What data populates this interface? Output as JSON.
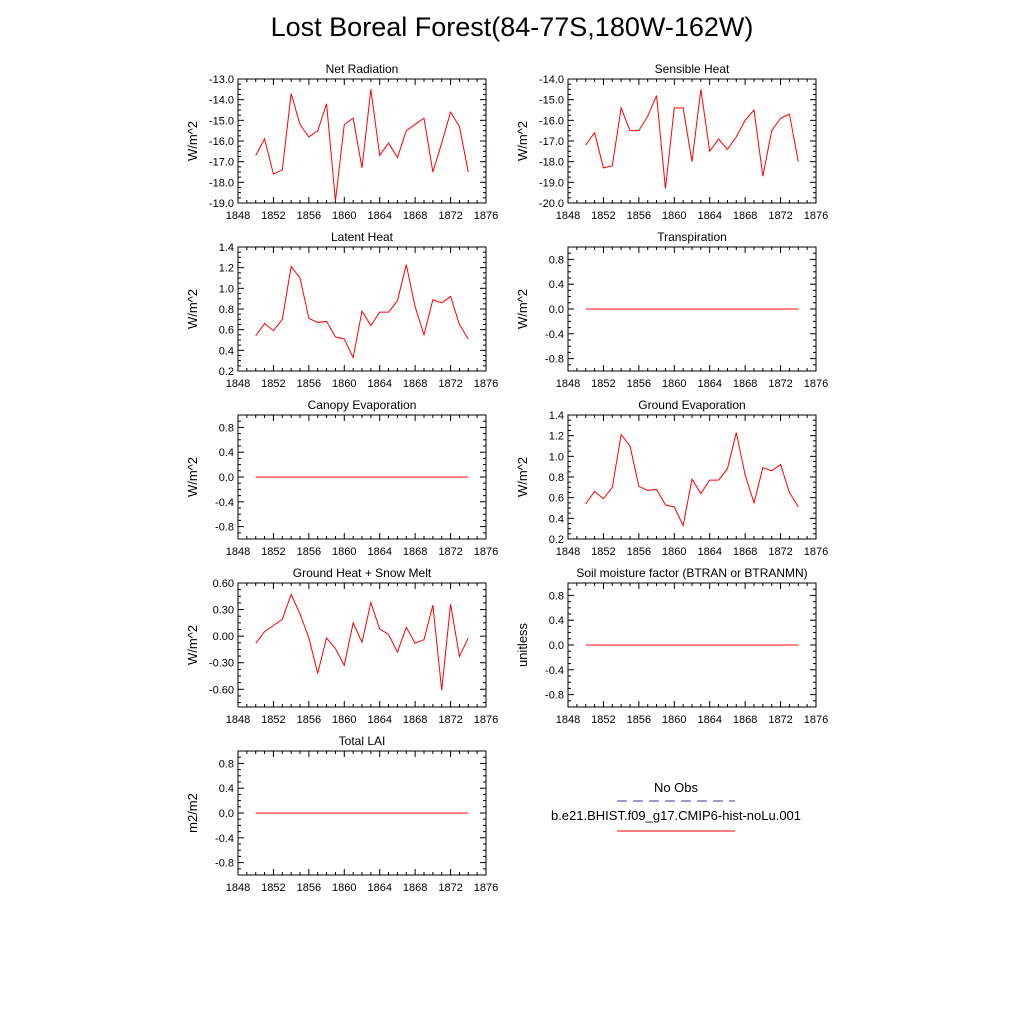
{
  "title": "Lost Boreal Forest(84-77S,180W-162W)",
  "legend": {
    "obs_label": "No Obs",
    "model_label": "b.e21.BHIST.f09_g17.CMIP6-hist-noLu.001",
    "obs_color": "#3c3c96",
    "model_color": "#ff0000"
  },
  "chart_data": [
    {
      "type": "line",
      "title": "Net Radiation",
      "ylabel": "W/m^2",
      "xlim": [
        1848,
        1876
      ],
      "ylim": [
        -19.0,
        -13.0
      ],
      "xticks": [
        "1848",
        "1852",
        "1856",
        "1860",
        "1864",
        "1868",
        "1872",
        "1876"
      ],
      "yticks": [
        "-13.0",
        "-14.0",
        "-15.0",
        "-16.0",
        "-17.0",
        "-18.0",
        "-19.0"
      ],
      "series": [
        {
          "x": [
            1850,
            1851,
            1852,
            1853,
            1854,
            1855,
            1856,
            1857,
            1858,
            1859,
            1860,
            1861,
            1862,
            1863,
            1864,
            1865,
            1866,
            1867,
            1868,
            1869,
            1870,
            1871,
            1872,
            1873,
            1874
          ],
          "y": [
            -16.7,
            -15.9,
            -17.6,
            -17.4,
            -13.7,
            -15.2,
            -15.8,
            -15.5,
            -14.2,
            -18.9,
            -15.2,
            -14.9,
            -17.3,
            -13.5,
            -16.7,
            -16.1,
            -16.8,
            -15.5,
            -15.2,
            -14.9,
            -17.5,
            -16.1,
            -14.6,
            -15.3,
            -17.5
          ],
          "color": "#ff0000"
        }
      ]
    },
    {
      "type": "line",
      "title": "Sensible Heat",
      "ylabel": "W/m^2",
      "xlim": [
        1848,
        1876
      ],
      "ylim": [
        -20.0,
        -14.0
      ],
      "xticks": [
        "1848",
        "1852",
        "1856",
        "1860",
        "1864",
        "1868",
        "1872",
        "1876"
      ],
      "yticks": [
        "-14.0",
        "-15.0",
        "-16.0",
        "-17.0",
        "-18.0",
        "-19.0",
        "-20.0"
      ],
      "series": [
        {
          "x": [
            1850,
            1851,
            1852,
            1853,
            1854,
            1855,
            1856,
            1857,
            1858,
            1859,
            1860,
            1861,
            1862,
            1863,
            1864,
            1865,
            1866,
            1867,
            1868,
            1869,
            1870,
            1871,
            1872,
            1873,
            1874
          ],
          "y": [
            -17.2,
            -16.6,
            -18.3,
            -18.2,
            -15.4,
            -16.5,
            -16.5,
            -15.8,
            -14.8,
            -19.3,
            -15.4,
            -15.4,
            -18.0,
            -14.5,
            -17.5,
            -16.9,
            -17.4,
            -16.8,
            -16.0,
            -15.5,
            -18.7,
            -16.5,
            -15.9,
            -15.7,
            -18.0
          ],
          "color": "#ff0000"
        }
      ]
    },
    {
      "type": "line",
      "title": "Latent Heat",
      "ylabel": "W/m^2",
      "xlim": [
        1848,
        1876
      ],
      "ylim": [
        0.2,
        1.4
      ],
      "xticks": [
        "1848",
        "1852",
        "1856",
        "1860",
        "1864",
        "1868",
        "1872",
        "1876"
      ],
      "yticks": [
        "1.4",
        "1.2",
        "1.0",
        "0.8",
        "0.6",
        "0.4",
        "0.2"
      ],
      "series": [
        {
          "x": [
            1850,
            1851,
            1852,
            1853,
            1854,
            1855,
            1856,
            1857,
            1858,
            1859,
            1860,
            1861,
            1862,
            1863,
            1864,
            1865,
            1866,
            1867,
            1868,
            1869,
            1870,
            1871,
            1872,
            1873,
            1874
          ],
          "y": [
            0.54,
            0.66,
            0.59,
            0.7,
            1.21,
            1.1,
            0.71,
            0.67,
            0.68,
            0.53,
            0.51,
            0.33,
            0.78,
            0.64,
            0.77,
            0.77,
            0.88,
            1.23,
            0.82,
            0.55,
            0.89,
            0.86,
            0.92,
            0.65,
            0.51
          ],
          "color": "#ff0000"
        }
      ]
    },
    {
      "type": "line",
      "title": "Transpiration",
      "ylabel": "W/m^2",
      "xlim": [
        1848,
        1876
      ],
      "ylim": [
        -1.0,
        1.0
      ],
      "xticks": [
        "1848",
        "1852",
        "1856",
        "1860",
        "1864",
        "1868",
        "1872",
        "1876"
      ],
      "yticks": [
        "0.8",
        "0.4",
        "0.0",
        "-0.4",
        "-0.8"
      ],
      "series": [
        {
          "x": [
            1850,
            1851,
            1852,
            1853,
            1854,
            1855,
            1856,
            1857,
            1858,
            1859,
            1860,
            1861,
            1862,
            1863,
            1864,
            1865,
            1866,
            1867,
            1868,
            1869,
            1870,
            1871,
            1872,
            1873,
            1874
          ],
          "y": [
            0,
            0,
            0,
            0,
            0,
            0,
            0,
            0,
            0,
            0,
            0,
            0,
            0,
            0,
            0,
            0,
            0,
            0,
            0,
            0,
            0,
            0,
            0,
            0,
            0
          ],
          "color": "#ff0000"
        }
      ]
    },
    {
      "type": "line",
      "title": "Canopy Evaporation",
      "ylabel": "W/m^2",
      "xlim": [
        1848,
        1876
      ],
      "ylim": [
        -1.0,
        1.0
      ],
      "xticks": [
        "1848",
        "1852",
        "1856",
        "1860",
        "1864",
        "1868",
        "1872",
        "1876"
      ],
      "yticks": [
        "0.8",
        "0.4",
        "0.0",
        "-0.4",
        "-0.8"
      ],
      "series": [
        {
          "x": [
            1850,
            1851,
            1852,
            1853,
            1854,
            1855,
            1856,
            1857,
            1858,
            1859,
            1860,
            1861,
            1862,
            1863,
            1864,
            1865,
            1866,
            1867,
            1868,
            1869,
            1870,
            1871,
            1872,
            1873,
            1874
          ],
          "y": [
            0,
            0,
            0,
            0,
            0,
            0,
            0,
            0,
            0,
            0,
            0,
            0,
            0,
            0,
            0,
            0,
            0,
            0,
            0,
            0,
            0,
            0,
            0,
            0,
            0
          ],
          "color": "#ff0000"
        }
      ]
    },
    {
      "type": "line",
      "title": "Ground Evaporation",
      "ylabel": "W/m^2",
      "xlim": [
        1848,
        1876
      ],
      "ylim": [
        0.2,
        1.4
      ],
      "xticks": [
        "1848",
        "1852",
        "1856",
        "1860",
        "1864",
        "1868",
        "1872",
        "1876"
      ],
      "yticks": [
        "1.4",
        "1.2",
        "1.0",
        "0.8",
        "0.6",
        "0.4",
        "0.2"
      ],
      "series": [
        {
          "x": [
            1850,
            1851,
            1852,
            1853,
            1854,
            1855,
            1856,
            1857,
            1858,
            1859,
            1860,
            1861,
            1862,
            1863,
            1864,
            1865,
            1866,
            1867,
            1868,
            1869,
            1870,
            1871,
            1872,
            1873,
            1874
          ],
          "y": [
            0.54,
            0.66,
            0.59,
            0.7,
            1.21,
            1.1,
            0.71,
            0.67,
            0.68,
            0.53,
            0.51,
            0.33,
            0.78,
            0.64,
            0.77,
            0.77,
            0.88,
            1.23,
            0.82,
            0.55,
            0.89,
            0.86,
            0.92,
            0.65,
            0.51
          ],
          "color": "#ff0000"
        }
      ]
    },
    {
      "type": "line",
      "title": "Ground Heat + Snow Melt",
      "ylabel": "W/m^2",
      "xlim": [
        1848,
        1876
      ],
      "ylim": [
        -0.8,
        0.6
      ],
      "xticks": [
        "1848",
        "1852",
        "1856",
        "1860",
        "1864",
        "1868",
        "1872",
        "1876"
      ],
      "yticks": [
        "0.60",
        "0.30",
        "0.00",
        "-0.30",
        "-0.60"
      ],
      "series": [
        {
          "x": [
            1850,
            1851,
            1852,
            1853,
            1854,
            1855,
            1856,
            1857,
            1858,
            1859,
            1860,
            1861,
            1862,
            1863,
            1864,
            1865,
            1866,
            1867,
            1868,
            1869,
            1870,
            1871,
            1872,
            1873,
            1874
          ],
          "y": [
            -0.08,
            0.05,
            0.12,
            0.19,
            0.47,
            0.25,
            -0.02,
            -0.42,
            -0.02,
            -0.14,
            -0.33,
            0.15,
            -0.07,
            0.38,
            0.08,
            0.02,
            -0.18,
            0.1,
            -0.08,
            -0.04,
            0.35,
            -0.61,
            0.36,
            -0.23,
            -0.02
          ],
          "color": "#ff0000"
        }
      ]
    },
    {
      "type": "line",
      "title": "Soil moisture factor (BTRAN or BTRANMN)",
      "ylabel": "unitless",
      "xlim": [
        1848,
        1876
      ],
      "ylim": [
        -1.0,
        1.0
      ],
      "xticks": [
        "1848",
        "1852",
        "1856",
        "1860",
        "1864",
        "1868",
        "1872",
        "1876"
      ],
      "yticks": [
        "0.8",
        "0.4",
        "0.0",
        "-0.4",
        "-0.8"
      ],
      "series": [
        {
          "x": [
            1850,
            1851,
            1852,
            1853,
            1854,
            1855,
            1856,
            1857,
            1858,
            1859,
            1860,
            1861,
            1862,
            1863,
            1864,
            1865,
            1866,
            1867,
            1868,
            1869,
            1870,
            1871,
            1872,
            1873,
            1874
          ],
          "y": [
            0,
            0,
            0,
            0,
            0,
            0,
            0,
            0,
            0,
            0,
            0,
            0,
            0,
            0,
            0,
            0,
            0,
            0,
            0,
            0,
            0,
            0,
            0,
            0,
            0
          ],
          "color": "#ff0000"
        }
      ]
    },
    {
      "type": "line",
      "title": "Total LAI",
      "ylabel": "m2/m2",
      "xlim": [
        1848,
        1876
      ],
      "ylim": [
        -1.0,
        1.0
      ],
      "xticks": [
        "1848",
        "1852",
        "1856",
        "1860",
        "1864",
        "1868",
        "1872",
        "1876"
      ],
      "yticks": [
        "0.8",
        "0.4",
        "0.0",
        "-0.4",
        "-0.8"
      ],
      "series": [
        {
          "x": [
            1850,
            1851,
            1852,
            1853,
            1854,
            1855,
            1856,
            1857,
            1858,
            1859,
            1860,
            1861,
            1862,
            1863,
            1864,
            1865,
            1866,
            1867,
            1868,
            1869,
            1870,
            1871,
            1872,
            1873,
            1874
          ],
          "y": [
            0,
            0,
            0,
            0,
            0,
            0,
            0,
            0,
            0,
            0,
            0,
            0,
            0,
            0,
            0,
            0,
            0,
            0,
            0,
            0,
            0,
            0,
            0,
            0,
            0
          ],
          "color": "#ff0000"
        }
      ]
    }
  ]
}
